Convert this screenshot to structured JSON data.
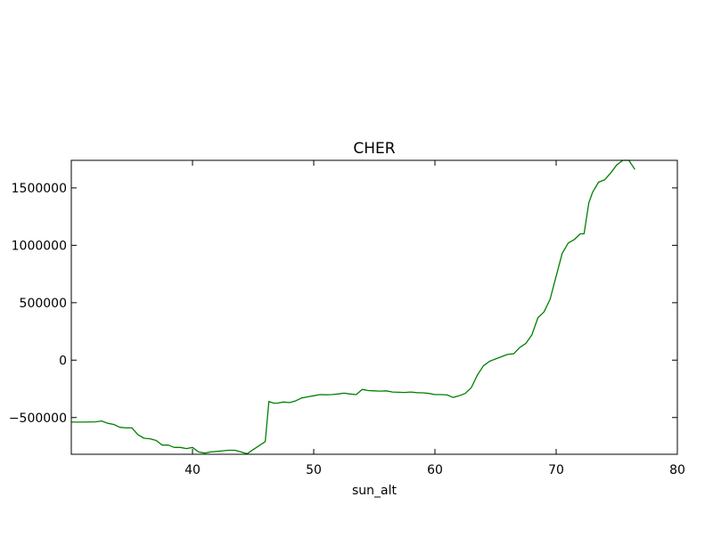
{
  "chart_data": {
    "type": "line",
    "title": "CHER",
    "xlabel": "sun_alt",
    "ylabel": "",
    "xlim": [
      30,
      80
    ],
    "ylim": [
      -820000,
      1740000
    ],
    "xticks": [
      40,
      50,
      60,
      70,
      80
    ],
    "xtick_labels": [
      "40",
      "50",
      "60",
      "70",
      "80"
    ],
    "yticks": [
      -500000,
      0,
      500000,
      1000000,
      1500000
    ],
    "ytick_labels": [
      "−500000",
      "0",
      "500000",
      "1000000",
      "1500000"
    ],
    "grid": false,
    "series": [
      {
        "color": "#008000",
        "x": [
          30.0,
          31.0,
          32.0,
          32.5,
          33.0,
          33.5,
          34.0,
          34.5,
          35.0,
          35.5,
          36.0,
          36.5,
          37.0,
          37.5,
          38.0,
          38.5,
          39.0,
          39.5,
          40.0,
          40.5,
          41.0,
          41.5,
          42.0,
          42.5,
          43.0,
          43.5,
          44.0,
          44.5,
          45.0,
          45.5,
          46.0,
          46.3,
          46.7,
          47.0,
          47.5,
          48.0,
          48.5,
          49.0,
          49.5,
          50.0,
          50.5,
          51.0,
          51.5,
          52.0,
          52.5,
          53.0,
          53.5,
          54.0,
          54.5,
          55.0,
          55.5,
          56.0,
          56.5,
          57.0,
          57.5,
          58.0,
          58.5,
          59.0,
          59.5,
          60.0,
          60.5,
          61.0,
          61.5,
          62.0,
          62.5,
          63.0,
          63.5,
          64.0,
          64.5,
          65.0,
          65.5,
          66.0,
          66.5,
          67.0,
          67.5,
          68.0,
          68.5,
          69.0,
          69.5,
          70.0,
          70.5,
          71.0,
          71.5,
          72.0,
          72.3,
          72.7,
          73.0,
          73.5,
          74.0,
          74.5,
          75.0,
          75.5,
          76.0,
          76.5
        ],
        "values": [
          -540000,
          -540000,
          -538000,
          -530000,
          -550000,
          -560000,
          -585000,
          -590000,
          -590000,
          -650000,
          -680000,
          -685000,
          -700000,
          -740000,
          -740000,
          -760000,
          -760000,
          -770000,
          -760000,
          -800000,
          -810000,
          -800000,
          -795000,
          -790000,
          -785000,
          -785000,
          -800000,
          -815000,
          -780000,
          -745000,
          -710000,
          -360000,
          -375000,
          -375000,
          -365000,
          -370000,
          -355000,
          -330000,
          -320000,
          -310000,
          -300000,
          -302000,
          -300000,
          -295000,
          -288000,
          -295000,
          -300000,
          -255000,
          -265000,
          -268000,
          -270000,
          -268000,
          -278000,
          -280000,
          -282000,
          -278000,
          -283000,
          -285000,
          -290000,
          -300000,
          -300000,
          -303000,
          -325000,
          -310000,
          -290000,
          -240000,
          -130000,
          -50000,
          -10000,
          10000,
          30000,
          50000,
          55000,
          110000,
          145000,
          220000,
          370000,
          420000,
          530000,
          730000,
          930000,
          1020000,
          1050000,
          1100000,
          1100000,
          1370000,
          1460000,
          1550000,
          1570000,
          1630000,
          1700000,
          1740000,
          1740000,
          1660000
        ]
      }
    ]
  }
}
